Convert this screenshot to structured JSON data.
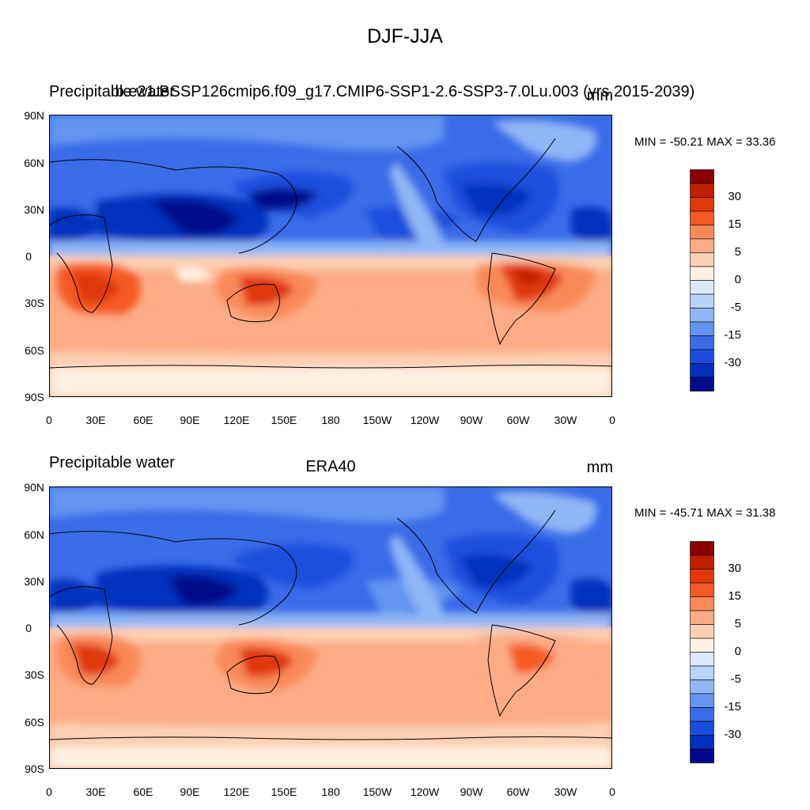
{
  "title": "DJF-JJA",
  "panels": [
    {
      "left_label": "Precipitable water",
      "center_label": "b.e21.BSSP126cmip6.f09_g17.CMIP6-SSP1-2.6-SSP3-7.0Lu.003 (yrs 2015-2039)",
      "right_label": "mm",
      "min_max": "MIN = -50.21 MAX =  33.36"
    },
    {
      "left_label": "Precipitable water",
      "center_label": "ERA40",
      "right_label": "mm",
      "min_max": "MIN = -45.71 MAX =  31.38"
    }
  ],
  "lat_labels": [
    "90N",
    "60N",
    "30N",
    "0",
    "30S",
    "60S",
    "90S"
  ],
  "lon_labels": [
    "0",
    "30E",
    "60E",
    "90E",
    "120E",
    "150E",
    "180",
    "150W",
    "120W",
    "90W",
    "60W",
    "30W",
    "0"
  ],
  "colorbar": {
    "labels": [
      "30",
      "15",
      "5",
      "0",
      "-5",
      "-15",
      "-30"
    ],
    "colors": [
      "#8b0000",
      "#c02000",
      "#e03808",
      "#f55a24",
      "#f98a58",
      "#fcab84",
      "#fdd0b4",
      "#fff0e2",
      "#dce9fa",
      "#b8d3f8",
      "#8fb6f5",
      "#6294f0",
      "#3a6ce8",
      "#1a4fdc",
      "#0030bc",
      "#000a8a"
    ]
  }
}
